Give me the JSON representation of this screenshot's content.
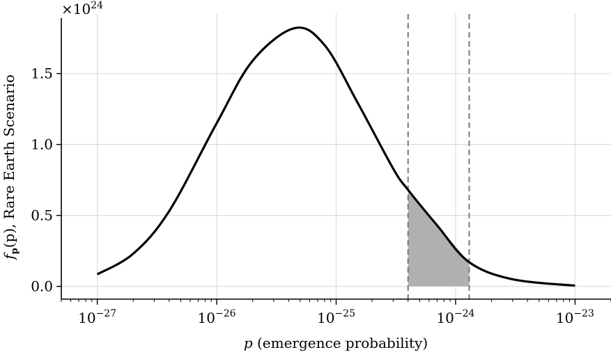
{
  "chart_data": {
    "type": "line",
    "title": "",
    "xlabel_var": "p",
    "xlabel_rest": " (emergence probability)",
    "ylabel_func": "f",
    "ylabel_sub": "p",
    "ylabel_arg": "(p)",
    "ylabel_rest": ", Rare Earth Scenario",
    "y_multiplier_prefix": "×10",
    "y_multiplier_exp": "24",
    "x_scale": "log",
    "xlim": [
      5e-28,
      2e-23
    ],
    "ylim": [
      -0.09,
      1.92
    ],
    "grid": true,
    "x_ticks": [
      {
        "value": 1e-27,
        "base": "10",
        "exp": "−27"
      },
      {
        "value": 1e-26,
        "base": "10",
        "exp": "−26"
      },
      {
        "value": 1e-25,
        "base": "10",
        "exp": "−25"
      },
      {
        "value": 1e-24,
        "base": "10",
        "exp": "−24"
      },
      {
        "value": 1e-23,
        "base": "10",
        "exp": "−23"
      }
    ],
    "y_ticks": [
      {
        "value": 0.0,
        "label": "0.0"
      },
      {
        "value": 0.5,
        "label": "0.5"
      },
      {
        "value": 1.0,
        "label": "1.0"
      },
      {
        "value": 1.5,
        "label": "1.5"
      }
    ],
    "series": [
      {
        "color": "#000000",
        "x": [
          1e-27,
          2e-27,
          4e-27,
          1e-26,
          2e-26,
          4.5e-26,
          8e-26,
          1.5e-25,
          3e-25,
          4e-25,
          7e-25,
          1.3e-24,
          3e-24,
          1e-23
        ],
        "y": [
          0.085,
          0.23,
          0.53,
          1.15,
          1.59,
          1.82,
          1.7,
          1.3,
          0.83,
          0.68,
          0.43,
          0.17,
          0.05,
          0.005
        ]
      }
    ],
    "shaded_region": {
      "x_start": 4e-25,
      "x_end": 1.3e-24,
      "color": "#b0b0b0"
    },
    "vertical_lines": [
      {
        "x": 4e-25,
        "style": "dashed",
        "color": "#777777"
      },
      {
        "x": 1.3e-24,
        "style": "dashed",
        "color": "#777777"
      }
    ]
  }
}
